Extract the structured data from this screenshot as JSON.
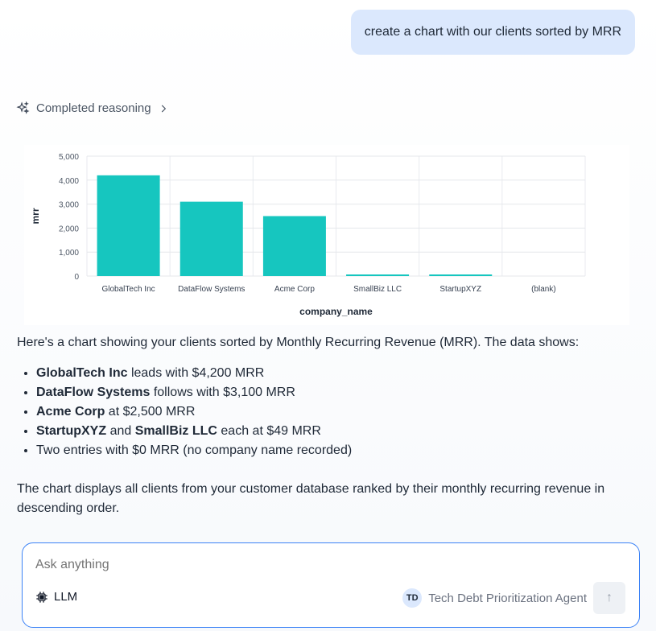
{
  "user_message": "create a chart with our clients sorted by MRR",
  "reasoning": {
    "label": "Completed reasoning",
    "icon": "sparkles-icon"
  },
  "chart_data": {
    "type": "bar",
    "categories": [
      "GlobalTech Inc",
      "DataFlow Systems",
      "Acme Corp",
      "SmallBiz LLC",
      "StartupXYZ",
      "(blank)"
    ],
    "values": [
      4200,
      3100,
      2500,
      49,
      49,
      0
    ],
    "xlabel": "company_name",
    "ylabel": "mrr",
    "ylim": [
      0,
      5000
    ],
    "yticks": [
      0,
      1000,
      2000,
      3000,
      4000,
      5000
    ],
    "ytick_labels": [
      "0",
      "1,000",
      "2,000",
      "3,000",
      "4,000",
      "5,000"
    ],
    "grid": true,
    "color": "#16c6bf"
  },
  "response": {
    "intro": "Here's a chart showing your clients sorted by Monthly Recurring Revenue (MRR). The data shows:",
    "bullets": [
      {
        "b1": "GlobalTech Inc",
        "t": " leads with $4,200 MRR"
      },
      {
        "b1": "DataFlow Systems",
        "t": " follows with $3,100 MRR"
      },
      {
        "b1": "Acme Corp",
        "t": " at $2,500 MRR"
      },
      {
        "b1": "StartupXYZ",
        "mid": " and ",
        "b2": "SmallBiz LLC",
        "t": " each at $49 MRR"
      },
      {
        "t": "Two entries with $0 MRR (no company name recorded)"
      }
    ],
    "outro": "The chart displays all clients from your customer database ranked by their monthly recurring revenue in descending order."
  },
  "composer": {
    "placeholder": "Ask anything",
    "model_label": "LLM",
    "agent_initials": "TD",
    "agent_name": "Tech Debt Prioritization Agent",
    "send_icon": "arrow-up-icon"
  }
}
